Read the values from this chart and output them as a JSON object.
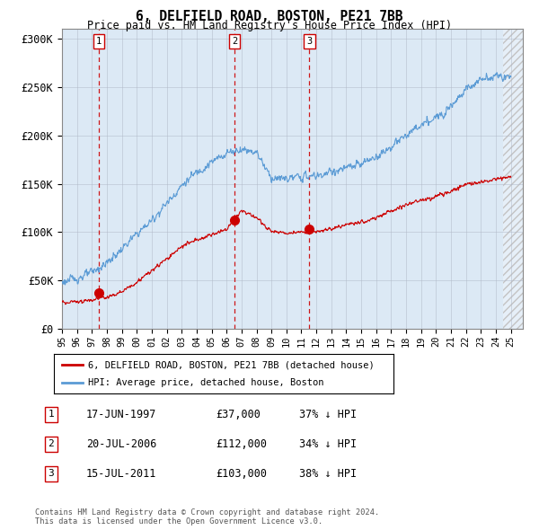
{
  "title": "6, DELFIELD ROAD, BOSTON, PE21 7BB",
  "subtitle": "Price paid vs. HM Land Registry's House Price Index (HPI)",
  "hpi_label": "HPI: Average price, detached house, Boston",
  "price_label": "6, DELFIELD ROAD, BOSTON, PE21 7BB (detached house)",
  "sale_points": [
    {
      "year": 1997.46,
      "price": 37000,
      "label": "1"
    },
    {
      "year": 2006.54,
      "price": 112000,
      "label": "2"
    },
    {
      "year": 2011.54,
      "price": 103000,
      "label": "3"
    }
  ],
  "sale_table": [
    {
      "num": "1",
      "date": "17-JUN-1997",
      "price": "£37,000",
      "hpi": "37% ↓ HPI"
    },
    {
      "num": "2",
      "date": "20-JUL-2006",
      "price": "£112,000",
      "hpi": "34% ↓ HPI"
    },
    {
      "num": "3",
      "date": "15-JUL-2011",
      "price": "£103,000",
      "hpi": "38% ↓ HPI"
    }
  ],
  "footnote": "Contains HM Land Registry data © Crown copyright and database right 2024.\nThis data is licensed under the Open Government Licence v3.0.",
  "ylim": [
    0,
    310000
  ],
  "yticks": [
    0,
    50000,
    100000,
    150000,
    200000,
    250000,
    300000
  ],
  "ytick_labels": [
    "£0",
    "£50K",
    "£100K",
    "£150K",
    "£200K",
    "£250K",
    "£300K"
  ],
  "hpi_color": "#5b9bd5",
  "price_color": "#cc0000",
  "bg_color": "#dce9f5",
  "grid_color": "#b0b8c8",
  "dashed_color": "#cc0000",
  "hpi_anchors_x": [
    1995,
    1996,
    1997,
    1998,
    1999,
    2000,
    2001,
    2002,
    2003,
    2004,
    2005,
    2006,
    2007,
    2008,
    2009,
    2010,
    2011,
    2012,
    2013,
    2014,
    2015,
    2016,
    2017,
    2018,
    2019,
    2020,
    2021,
    2022,
    2023,
    2024,
    2025
  ],
  "hpi_anchors_y": [
    48000,
    52000,
    58000,
    68000,
    82000,
    98000,
    112000,
    130000,
    148000,
    162000,
    172000,
    182000,
    186000,
    183000,
    156000,
    155000,
    157000,
    158000,
    162000,
    166000,
    170000,
    178000,
    188000,
    200000,
    210000,
    218000,
    232000,
    248000,
    258000,
    262000,
    260000
  ],
  "price_anchors_x": [
    1995,
    1996,
    1997,
    1998,
    1999,
    2000,
    2001,
    2002,
    2003,
    2004,
    2005,
    2006,
    2007,
    2008,
    2009,
    2010,
    2011,
    2012,
    2013,
    2014,
    2015,
    2016,
    2017,
    2018,
    2019,
    2020,
    2021,
    2022,
    2023,
    2024,
    2025
  ],
  "price_anchors_y": [
    27000,
    28000,
    30000,
    33000,
    38000,
    48000,
    60000,
    72000,
    85000,
    92000,
    97000,
    103000,
    122000,
    115000,
    100000,
    99000,
    100000,
    100000,
    103000,
    107000,
    110000,
    115000,
    122000,
    128000,
    133000,
    137000,
    142000,
    150000,
    152000,
    155000,
    157000
  ]
}
